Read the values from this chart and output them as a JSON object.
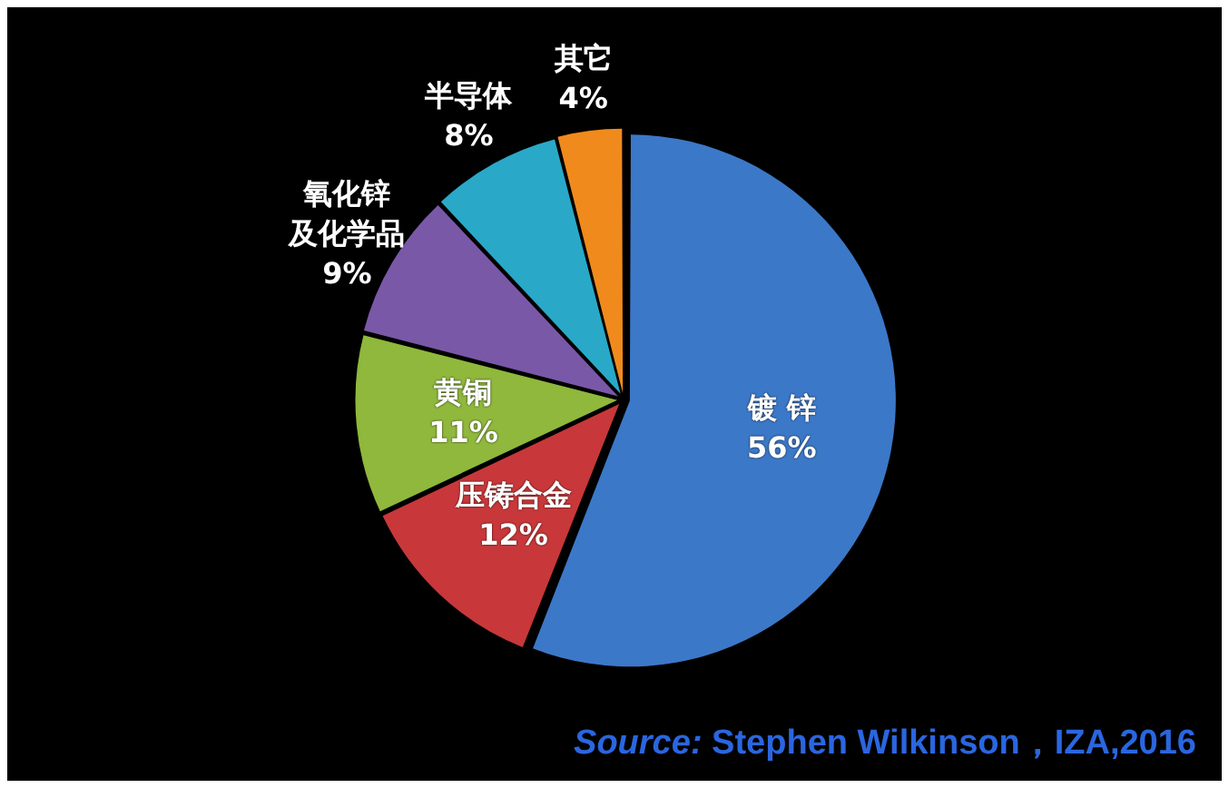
{
  "chart_data": {
    "type": "pie",
    "categories": [
      "镀 锌",
      "压铸合金",
      "黄铜",
      "氧化锌及化学品",
      "半导体",
      "其它"
    ],
    "values": [
      56,
      12,
      11,
      9,
      8,
      4
    ],
    "value_labels": [
      "56%",
      "12%",
      "11%",
      "9%",
      "8%",
      "4%"
    ],
    "colors": [
      "#3c78c8",
      "#c8383a",
      "#8fb83c",
      "#7a58a8",
      "#2aa8c8",
      "#f08a1c"
    ],
    "legend": false,
    "annotations": [
      "Source: Stephen Wilkinson，IZA,2016"
    ]
  }
}
